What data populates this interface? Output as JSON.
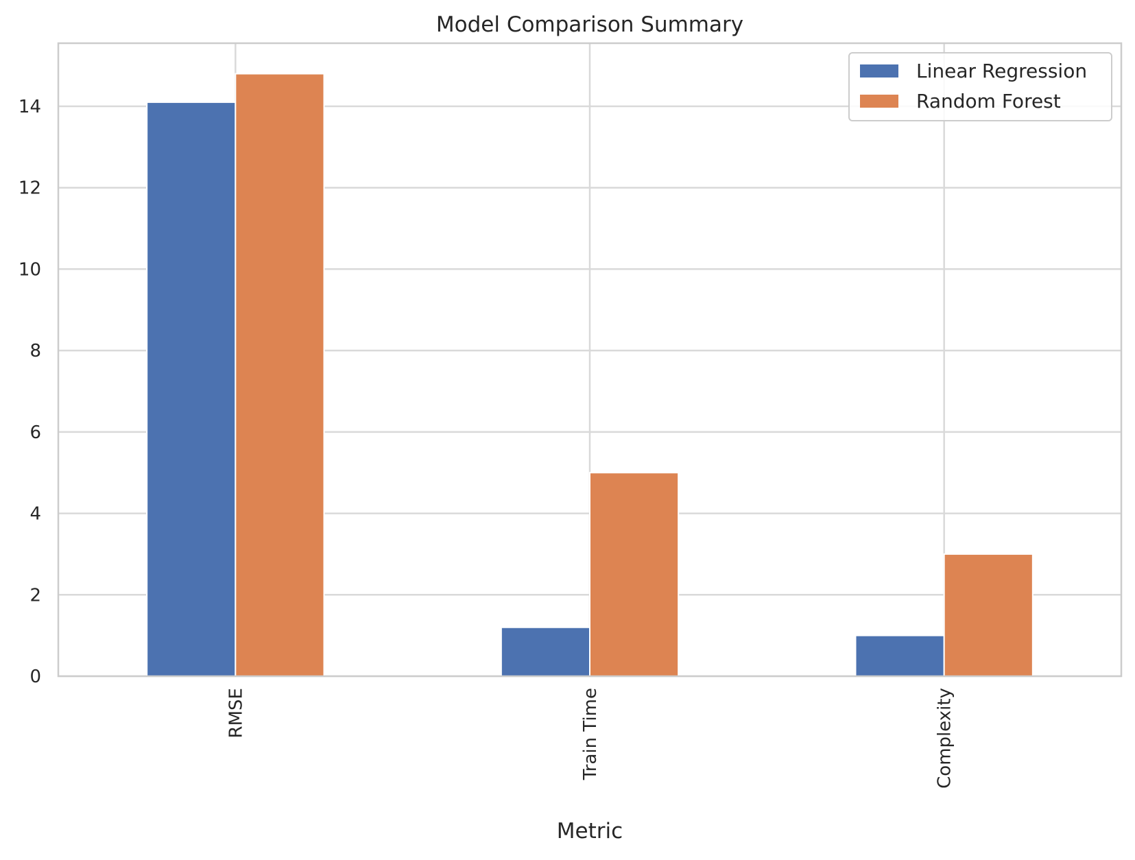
{
  "chart_data": {
    "type": "bar",
    "title": "Model Comparison Summary",
    "xlabel": "Metric",
    "ylabel": "",
    "categories": [
      "RMSE",
      "Train Time",
      "Complexity"
    ],
    "series": [
      {
        "name": "Linear Regression",
        "values": [
          14.1,
          1.2,
          1.0
        ],
        "color": "#4c72b0"
      },
      {
        "name": "Random Forest",
        "values": [
          14.8,
          5.0,
          3.0
        ],
        "color": "#dd8452"
      }
    ],
    "ylim": [
      0,
      15.55
    ],
    "yticks": [
      0,
      2,
      4,
      6,
      8,
      10,
      12,
      14
    ],
    "grid": true,
    "legend_position": "top-right",
    "tick_label_rotation": "vertical"
  }
}
